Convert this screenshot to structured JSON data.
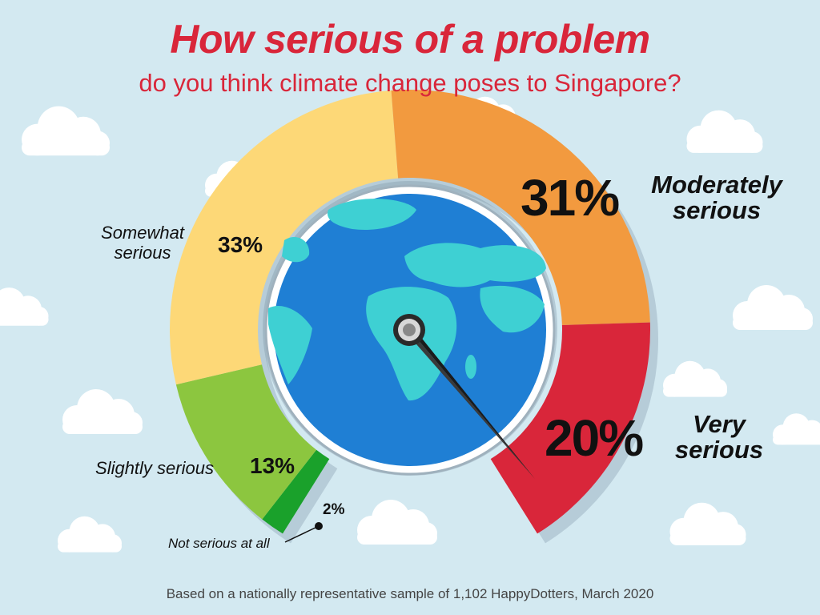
{
  "title": "How serious of a problem",
  "subtitle": "do you think climate change poses to Singapore?",
  "footer": "Based on a nationally representative sample of 1,102 HappyDotters, March 2020",
  "colors": {
    "background": "#d3e9f1",
    "title": "#d9263a",
    "not_serious_at_all": "#1aa12b",
    "slightly_serious": "#8cc63f",
    "somewhat_serious": "#fdd877",
    "moderately_serious": "#f29a3f",
    "very_serious": "#d9263a",
    "globe_ocean": "#1f7fd4",
    "globe_land": "#3ed0d3"
  },
  "chart_data": {
    "type": "gauge",
    "categories": [
      "Not serious at all",
      "Slightly serious",
      "Somewhat serious",
      "Moderately serious",
      "Very serious"
    ],
    "values": [
      2,
      13,
      33,
      31,
      20
    ],
    "labels": {
      "not_serious_at_all": {
        "name": "Not serious at all",
        "value": "2%"
      },
      "slightly_serious": {
        "name": "Slightly serious",
        "value": "13%"
      },
      "somewhat_serious": {
        "name_line1": "Somewhat",
        "name_line2": "serious",
        "value": "33%"
      },
      "moderately_serious": {
        "name_line1": "Moderately",
        "name_line2": "serious",
        "value": "31%"
      },
      "very_serious": {
        "name_line1": "Very",
        "name_line2": "serious",
        "value": "20%"
      }
    },
    "pointer": "Very serious"
  }
}
